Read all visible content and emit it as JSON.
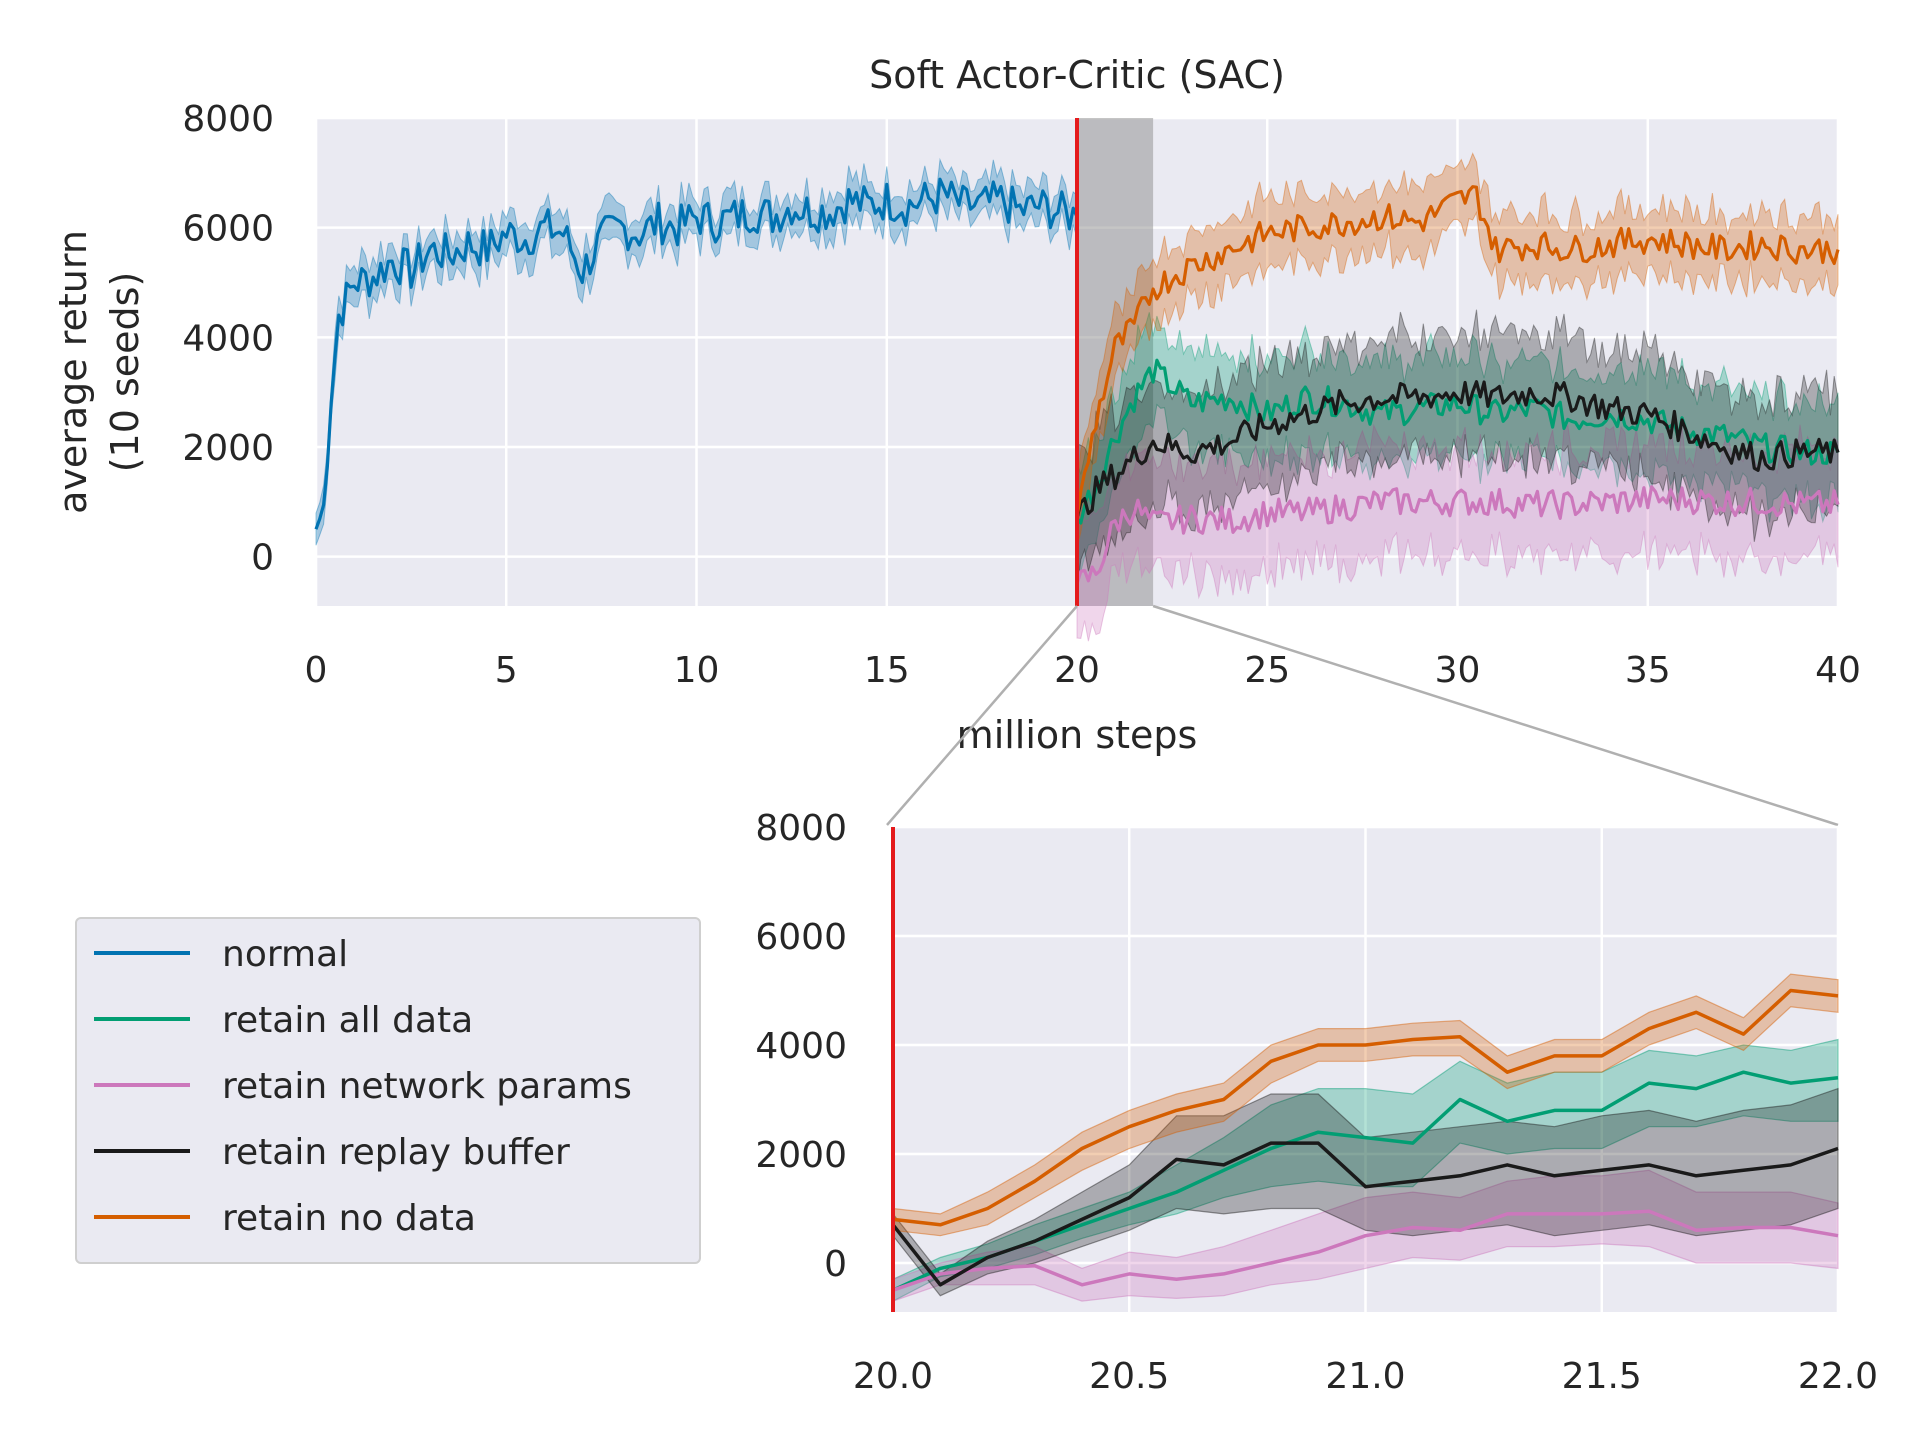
{
  "chart_data": [
    {
      "id": "main",
      "type": "line",
      "title": "Soft Actor-Critic (SAC)",
      "xlabel": "million steps",
      "ylabel": [
        "average return",
        "(10 seeds)"
      ],
      "xlim": [
        0,
        40
      ],
      "ylim": [
        -900,
        8000
      ],
      "xticks": [
        0,
        5,
        10,
        15,
        20,
        25,
        30,
        35,
        40
      ],
      "yticks": [
        0,
        2000,
        4000,
        6000,
        8000
      ],
      "grid": true,
      "vline_x": 20,
      "shaded_x_range": [
        20,
        22
      ],
      "series": [
        {
          "name": "normal",
          "color": "#0173b2",
          "x": [
            0,
            0.2,
            0.4,
            0.6,
            0.8,
            1,
            1.5,
            2,
            2.5,
            3,
            3.5,
            4,
            4.5,
            5,
            5.5,
            6,
            6.5,
            7,
            7.5,
            8,
            8.5,
            9,
            9.5,
            10,
            10.5,
            11,
            11.5,
            12,
            12.5,
            13,
            13.5,
            14,
            14.5,
            15,
            15.5,
            16,
            16.5,
            17,
            17.5,
            18,
            18.5,
            19,
            19.5,
            20
          ],
          "y": [
            500,
            900,
            3000,
            4400,
            4700,
            5000,
            5100,
            5400,
            5200,
            5600,
            5500,
            5700,
            5600,
            5900,
            5800,
            6000,
            5900,
            5200,
            5800,
            6000,
            5900,
            6100,
            6000,
            6200,
            6100,
            6200,
            6300,
            6200,
            6400,
            6300,
            6300,
            6500,
            6400,
            6500,
            6400,
            6500,
            6600,
            6400,
            6400,
            6500,
            6300,
            6400,
            6300,
            6200
          ],
          "band": 350
        },
        {
          "name": "retain all data",
          "color": "#029e73",
          "x": [
            20,
            20.5,
            21,
            21.5,
            22,
            23,
            24,
            25,
            26,
            27,
            28,
            29,
            30,
            31,
            32,
            33,
            34,
            35,
            36,
            37,
            38,
            39,
            40
          ],
          "y": [
            700,
            1300,
            2200,
            2900,
            3400,
            2800,
            2900,
            2600,
            2900,
            2800,
            2600,
            2700,
            2800,
            2600,
            2700,
            2500,
            2600,
            2500,
            2300,
            2200,
            2000,
            1900,
            1900
          ],
          "band": 900
        },
        {
          "name": "retain network params",
          "color": "#cc78bc",
          "x": [
            20,
            20.5,
            21,
            21.5,
            22,
            23,
            24,
            25,
            26,
            27,
            28,
            29,
            30,
            31,
            32,
            33,
            34,
            35,
            36,
            37,
            38,
            39,
            40
          ],
          "y": [
            -500,
            -300,
            600,
            900,
            600,
            700,
            650,
            800,
            800,
            900,
            1000,
            1000,
            1000,
            1000,
            950,
            950,
            1000,
            1050,
            1050,
            1000,
            1000,
            950,
            950
          ],
          "band": 1000
        },
        {
          "name": "retain replay buffer",
          "color": "#1a1a1a",
          "x": [
            20,
            20.5,
            21,
            21.5,
            22,
            23,
            24,
            25,
            26,
            27,
            28,
            29,
            30,
            31,
            32,
            33,
            34,
            35,
            36,
            37,
            38,
            39,
            40
          ],
          "y": [
            700,
            1200,
            1500,
            1800,
            2100,
            1900,
            2100,
            2400,
            2600,
            2800,
            2900,
            2900,
            3000,
            2900,
            3000,
            2900,
            2700,
            2600,
            2300,
            2000,
            1800,
            1900,
            1900
          ],
          "band": 1100
        },
        {
          "name": "retain no data",
          "color": "#d55e00",
          "x": [
            20,
            20.5,
            21,
            21.5,
            22,
            23,
            24,
            25,
            26,
            27,
            28,
            29,
            30,
            30.5,
            31,
            32,
            33,
            34,
            35,
            36,
            37,
            38,
            39,
            40
          ],
          "y": [
            700,
            2500,
            3800,
            4200,
            4900,
            5300,
            5600,
            5900,
            6000,
            6100,
            6200,
            6100,
            6500,
            6600,
            5600,
            5700,
            5600,
            5700,
            5800,
            5700,
            5600,
            5700,
            5600,
            5600
          ],
          "band": 600
        }
      ]
    },
    {
      "id": "inset",
      "type": "line",
      "xlim": [
        20,
        22
      ],
      "ylim": [
        -900,
        8000
      ],
      "xticks": [
        "20.0",
        "20.5",
        "21.0",
        "21.5",
        "22.0"
      ],
      "yticks": [
        0,
        2000,
        4000,
        6000,
        8000
      ],
      "grid": true,
      "vline_x": 20,
      "series": [
        {
          "name": "retain all data",
          "color": "#029e73",
          "x": [
            20.0,
            20.1,
            20.2,
            20.3,
            20.4,
            20.5,
            20.6,
            20.7,
            20.8,
            20.9,
            21.0,
            21.1,
            21.2,
            21.3,
            21.4,
            21.5,
            21.6,
            21.7,
            21.8,
            21.9,
            22.0
          ],
          "y": [
            -500,
            -100,
            100,
            400,
            700,
            1000,
            1300,
            1700,
            2100,
            2400,
            2300,
            2200,
            3000,
            2600,
            2800,
            2800,
            3300,
            3200,
            3500,
            3300,
            3400
          ],
          "lower": [
            -700,
            -250,
            -100,
            150,
            450,
            700,
            900,
            1200,
            1400,
            1500,
            1400,
            1400,
            2200,
            2000,
            2100,
            2100,
            2500,
            2500,
            2700,
            2600,
            2600
          ],
          "upper": [
            -300,
            100,
            350,
            700,
            1000,
            1300,
            1800,
            2300,
            2900,
            3200,
            3200,
            3100,
            3700,
            3300,
            3500,
            3500,
            3900,
            3800,
            4000,
            3900,
            4100
          ]
        },
        {
          "name": "retain network params",
          "color": "#cc78bc",
          "x": [
            20.0,
            20.1,
            20.2,
            20.3,
            20.4,
            20.5,
            20.6,
            20.7,
            20.8,
            20.9,
            21.0,
            21.1,
            21.2,
            21.3,
            21.4,
            21.5,
            21.6,
            21.7,
            21.8,
            21.9,
            22.0
          ],
          "y": [
            -500,
            -200,
            -100,
            -50,
            -400,
            -200,
            -300,
            -200,
            0,
            200,
            500,
            650,
            600,
            900,
            900,
            900,
            950,
            600,
            650,
            650,
            500
          ],
          "lower": [
            -700,
            -400,
            -400,
            -400,
            -700,
            -600,
            -650,
            -600,
            -400,
            -300,
            -100,
            100,
            50,
            300,
            300,
            350,
            300,
            0,
            0,
            0,
            -100
          ],
          "upper": [
            -300,
            0,
            200,
            300,
            -100,
            200,
            100,
            300,
            600,
            900,
            1200,
            1300,
            1200,
            1500,
            1600,
            1600,
            1700,
            1300,
            1300,
            1300,
            1100
          ]
        },
        {
          "name": "retain replay buffer",
          "color": "#1a1a1a",
          "x": [
            20.0,
            20.1,
            20.2,
            20.3,
            20.4,
            20.5,
            20.6,
            20.7,
            20.8,
            20.9,
            21.0,
            21.1,
            21.2,
            21.3,
            21.4,
            21.5,
            21.6,
            21.7,
            21.8,
            21.9,
            22.0
          ],
          "y": [
            700,
            -400,
            100,
            400,
            800,
            1200,
            1900,
            1800,
            2200,
            2200,
            1400,
            1500,
            1600,
            1800,
            1600,
            1700,
            1800,
            1600,
            1700,
            1800,
            2100
          ],
          "lower": [
            500,
            -600,
            -200,
            0,
            300,
            600,
            1000,
            900,
            1000,
            1000,
            600,
            500,
            600,
            700,
            500,
            600,
            700,
            500,
            600,
            700,
            1000
          ],
          "upper": [
            900,
            -200,
            400,
            800,
            1300,
            1800,
            2700,
            2700,
            3100,
            3100,
            2300,
            2400,
            2500,
            2600,
            2500,
            2700,
            2800,
            2600,
            2800,
            2900,
            3200
          ]
        },
        {
          "name": "retain no data",
          "color": "#d55e00",
          "x": [
            20.0,
            20.1,
            20.2,
            20.3,
            20.4,
            20.5,
            20.6,
            20.7,
            20.8,
            20.9,
            21.0,
            21.1,
            21.2,
            21.3,
            21.4,
            21.5,
            21.6,
            21.7,
            21.8,
            21.9,
            22.0
          ],
          "y": [
            800,
            700,
            1000,
            1500,
            2100,
            2500,
            2800,
            3000,
            3700,
            4000,
            4000,
            4100,
            4150,
            3500,
            3800,
            3800,
            4300,
            4600,
            4200,
            5000,
            4900
          ],
          "lower": [
            600,
            500,
            700,
            1200,
            1700,
            2100,
            2400,
            2600,
            3300,
            3700,
            3700,
            3800,
            3800,
            3200,
            3500,
            3500,
            4000,
            4300,
            3900,
            4700,
            4600
          ],
          "upper": [
            1000,
            900,
            1300,
            1800,
            2400,
            2800,
            3100,
            3300,
            4000,
            4300,
            4300,
            4400,
            4450,
            3800,
            4100,
            4100,
            4600,
            4900,
            4500,
            5300,
            5200
          ]
        }
      ]
    }
  ],
  "legend": {
    "placement": "lower-left",
    "entries": [
      {
        "label": "normal",
        "color": "#0173b2"
      },
      {
        "label": "retain all data",
        "color": "#029e73"
      },
      {
        "label": "retain network params",
        "color": "#cc78bc"
      },
      {
        "label": "retain replay buffer",
        "color": "#1a1a1a"
      },
      {
        "label": "retain no data",
        "color": "#d55e00"
      }
    ]
  }
}
